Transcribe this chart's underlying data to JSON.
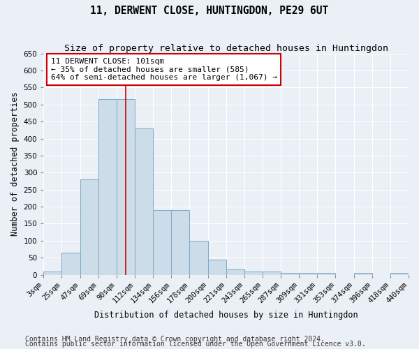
{
  "title": "11, DERWENT CLOSE, HUNTINGDON, PE29 6UT",
  "subtitle": "Size of property relative to detached houses in Huntingdon",
  "xlabel": "Distribution of detached houses by size in Huntingdon",
  "ylabel": "Number of detached properties",
  "bin_labels": [
    "3sqm",
    "25sqm",
    "47sqm",
    "69sqm",
    "90sqm",
    "112sqm",
    "134sqm",
    "156sqm",
    "178sqm",
    "200sqm",
    "221sqm",
    "243sqm",
    "265sqm",
    "287sqm",
    "309sqm",
    "331sqm",
    "353sqm",
    "374sqm",
    "396sqm",
    "418sqm",
    "440sqm"
  ],
  "bar_heights": [
    10,
    65,
    280,
    515,
    515,
    430,
    190,
    190,
    100,
    45,
    15,
    10,
    10,
    5,
    5,
    5,
    0,
    5,
    0,
    5
  ],
  "bar_color": "#ccdce8",
  "bar_edge_color": "#7aaac8",
  "red_line_x": 4.5,
  "annotation_text": "11 DERWENT CLOSE: 101sqm\n← 35% of detached houses are smaller (585)\n64% of semi-detached houses are larger (1,067) →",
  "annotation_box_color": "#ffffff",
  "annotation_box_edge": "#cc0000",
  "annotation_text_color": "#000000",
  "footer1": "Contains HM Land Registry data © Crown copyright and database right 2024.",
  "footer2": "Contains public sector information licensed under the Open Government Licence v3.0.",
  "ylim": [
    0,
    650
  ],
  "yticks": [
    0,
    50,
    100,
    150,
    200,
    250,
    300,
    350,
    400,
    450,
    500,
    550,
    600,
    650
  ],
  "bg_color": "#eaf0f6",
  "plot_bg_color": "#eaf0f6",
  "grid_color": "#ffffff",
  "title_fontsize": 10.5,
  "subtitle_fontsize": 9.5,
  "axis_label_fontsize": 8.5,
  "tick_fontsize": 7.5,
  "footer_fontsize": 7.0
}
